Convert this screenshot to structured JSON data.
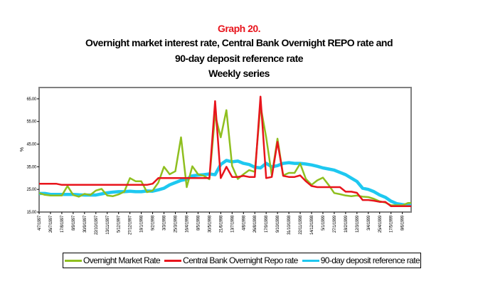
{
  "chart_data": {
    "type": "line",
    "title_lines": [
      "Graph 20.",
      "Overnight market interest rate, Central Bank Overnight REPO rate and",
      "90-day deposit reference rate",
      "Weekly series"
    ],
    "ylabel": "%",
    "xlabel": "",
    "ylim": [
      15,
      70
    ],
    "yticks": [
      "15.00",
      "25.00",
      "35.00",
      "45.00",
      "55.00",
      "65.00"
    ],
    "ytick_values": [
      15,
      25,
      35,
      45,
      55,
      65
    ],
    "xtick_labels": [
      "4/7/1997",
      "26/7/1997",
      "17/8/1997",
      "8/9/1997",
      "30/9/1997",
      "22/10/1997",
      "13/11/1997",
      "5/12/1997",
      "27/12/1997",
      "18/1/1998",
      "9/2/1998",
      "3/3/1998",
      "25/3/1998",
      "16/4/1998",
      "8/5/1998",
      "30/5/1998",
      "21/6/1998",
      "13/7/1998",
      "4/8/1998",
      "26/8/1998",
      "17/9/1998",
      "9/10/1998",
      "31/10/1998",
      "22/11/1998",
      "14/12/1998",
      "5/1/1999",
      "27/1/1999",
      "18/2/1999",
      "12/3/1999",
      "3/4/1999",
      "25/4/1999",
      "17/5/1999",
      "8/6/1999"
    ],
    "xlim": [
      "1997-07-04",
      "1999-06-25"
    ],
    "grid": false,
    "legend_position": "bottom",
    "x": [
      "1997-07-04",
      "1997-07-15",
      "1997-07-26",
      "1997-08-06",
      "1997-08-17",
      "1997-08-28",
      "1997-09-08",
      "1997-09-19",
      "1997-09-30",
      "1997-10-11",
      "1997-10-22",
      "1997-11-02",
      "1997-11-13",
      "1997-11-24",
      "1997-12-05",
      "1997-12-16",
      "1997-12-27",
      "1998-01-07",
      "1998-01-18",
      "1998-01-29",
      "1998-02-09",
      "1998-02-20",
      "1998-03-03",
      "1998-03-14",
      "1998-03-25",
      "1998-04-05",
      "1998-04-16",
      "1998-04-27",
      "1998-05-08",
      "1998-05-19",
      "1998-05-30",
      "1998-06-10",
      "1998-06-21",
      "1998-07-02",
      "1998-07-13",
      "1998-07-24",
      "1998-08-04",
      "1998-08-15",
      "1998-08-26",
      "1998-09-06",
      "1998-09-17",
      "1998-09-28",
      "1998-10-09",
      "1998-10-20",
      "1998-10-31",
      "1998-11-11",
      "1998-11-22",
      "1998-12-03",
      "1998-12-14",
      "1998-12-25",
      "1999-01-05",
      "1999-01-16",
      "1999-01-27",
      "1999-02-07",
      "1999-02-18",
      "1999-03-01",
      "1999-03-12",
      "1999-03-23",
      "1999-04-03",
      "1999-04-14",
      "1999-04-25",
      "1999-05-06",
      "1999-05-17",
      "1999-05-28",
      "1999-06-08",
      "1999-06-19",
      "1999-06-25"
    ],
    "series": [
      {
        "name": "Overnight Market Rate",
        "color": "#8fbf1f",
        "values": [
          23.4,
          22.6,
          22.3,
          22.3,
          22.3,
          26.5,
          22.5,
          21.8,
          23,
          22.5,
          24.5,
          25.2,
          22.3,
          22,
          22.8,
          24,
          30,
          28.6,
          28.6,
          23.8,
          24.5,
          28,
          35,
          31.7,
          33,
          48,
          26,
          35.2,
          31.7,
          31,
          29.5,
          58,
          48,
          60,
          35.4,
          29.6,
          31.7,
          33.5,
          32.8,
          62,
          48,
          31.2,
          47.4,
          31.2,
          32.3,
          32.3,
          36.4,
          29.6,
          27,
          29,
          30.2,
          27,
          23.4,
          22.9,
          22.3,
          22,
          22.3,
          21.8,
          21.6,
          20.8,
          19.7,
          19.2,
          18,
          18,
          18,
          19,
          19
        ]
      },
      {
        "name": "Central Bank Overnight Repo rate",
        "color": "#e8141c",
        "values": [
          27.5,
          27.5,
          27.5,
          27.5,
          27,
          27,
          27,
          27,
          27,
          27,
          27,
          27,
          27,
          27,
          27,
          27,
          27,
          27,
          27,
          27,
          27.5,
          30,
          30,
          30,
          30,
          30,
          30,
          30,
          30,
          30,
          30,
          64,
          30,
          35,
          30.5,
          30.5,
          31,
          30.5,
          30.5,
          66,
          30,
          30.5,
          46,
          31,
          30.5,
          30.5,
          31.2,
          28.6,
          26.5,
          26,
          26,
          26,
          26,
          26,
          24,
          24,
          23.5,
          20.3,
          20.3,
          20,
          19.5,
          19.5,
          17.6,
          17.6,
          17.6,
          17.6,
          17.6
        ]
      },
      {
        "name": "90-day deposit reference rate",
        "color": "#1ec8f0",
        "values": [
          23.2,
          23.2,
          22.8,
          22.8,
          22.8,
          22.8,
          22.8,
          22.6,
          22.5,
          22.5,
          22.5,
          23,
          23.5,
          23.8,
          24,
          24,
          24.2,
          24,
          24,
          24.3,
          24.2,
          24.8,
          25.5,
          27,
          28,
          29,
          29.5,
          31,
          31.3,
          31.5,
          31.8,
          31.5,
          36,
          37.8,
          37.2,
          37.5,
          36.5,
          36,
          34.8,
          34.5,
          36.5,
          35,
          35.5,
          36.5,
          36.8,
          36.5,
          36.5,
          36.2,
          35.8,
          35.2,
          34.5,
          34,
          33.5,
          32.5,
          31.5,
          30,
          28.5,
          25.5,
          25,
          24,
          22.5,
          21.5,
          19.8,
          18.7,
          18.3,
          18,
          18
        ]
      }
    ]
  }
}
